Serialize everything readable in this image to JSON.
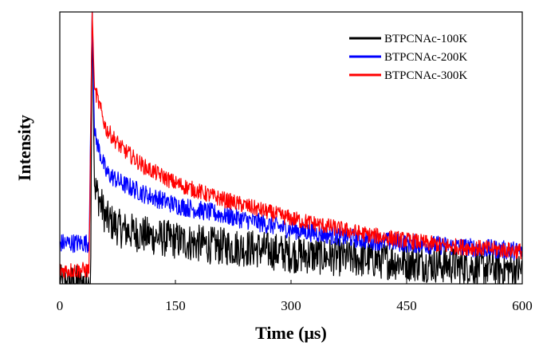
{
  "chart_data": {
    "type": "line",
    "title": "",
    "xlabel": "Time (μs)",
    "ylabel": "Intensity",
    "xlim": [
      0,
      600
    ],
    "ylim": [
      0,
      1
    ],
    "y_tick_labels_shown": false,
    "grid": false,
    "legend_position": "top-right",
    "x_ticks": [
      0,
      150,
      300,
      450,
      600
    ],
    "x_tick_labels": [
      "0",
      "150",
      "300",
      "450",
      "600"
    ],
    "series": [
      {
        "name": "BTPCNAc-100K",
        "color": "#000000",
        "x": [
          0,
          20,
          40,
          42,
          45,
          60,
          80,
          110,
          150,
          200,
          250,
          300,
          350,
          400,
          450,
          500,
          550,
          600
        ],
        "y": [
          0.0,
          0.0,
          0.0,
          1.0,
          0.36,
          0.24,
          0.2,
          0.18,
          0.16,
          0.14,
          0.13,
          0.11,
          0.1,
          0.09,
          0.08,
          0.07,
          0.06,
          0.05
        ],
        "noise": 0.07
      },
      {
        "name": "BTPCNAc-200K",
        "color": "#0000ff",
        "x": [
          0,
          20,
          38,
          42,
          45,
          60,
          80,
          110,
          150,
          200,
          250,
          300,
          350,
          400,
          450,
          500,
          550,
          600
        ],
        "y": [
          0.15,
          0.15,
          0.15,
          1.0,
          0.55,
          0.41,
          0.37,
          0.33,
          0.29,
          0.26,
          0.23,
          0.2,
          0.18,
          0.16,
          0.15,
          0.14,
          0.13,
          0.12
        ],
        "noise": 0.035
      },
      {
        "name": "BTPCNAc-300K",
        "color": "#ff0000",
        "x": [
          0,
          20,
          38,
          42,
          45,
          60,
          80,
          110,
          150,
          200,
          250,
          300,
          350,
          400,
          450,
          500,
          550,
          600
        ],
        "y": [
          0.05,
          0.05,
          0.05,
          1.0,
          0.72,
          0.57,
          0.5,
          0.43,
          0.37,
          0.32,
          0.28,
          0.24,
          0.21,
          0.18,
          0.16,
          0.14,
          0.13,
          0.12
        ],
        "noise": 0.03
      }
    ]
  }
}
